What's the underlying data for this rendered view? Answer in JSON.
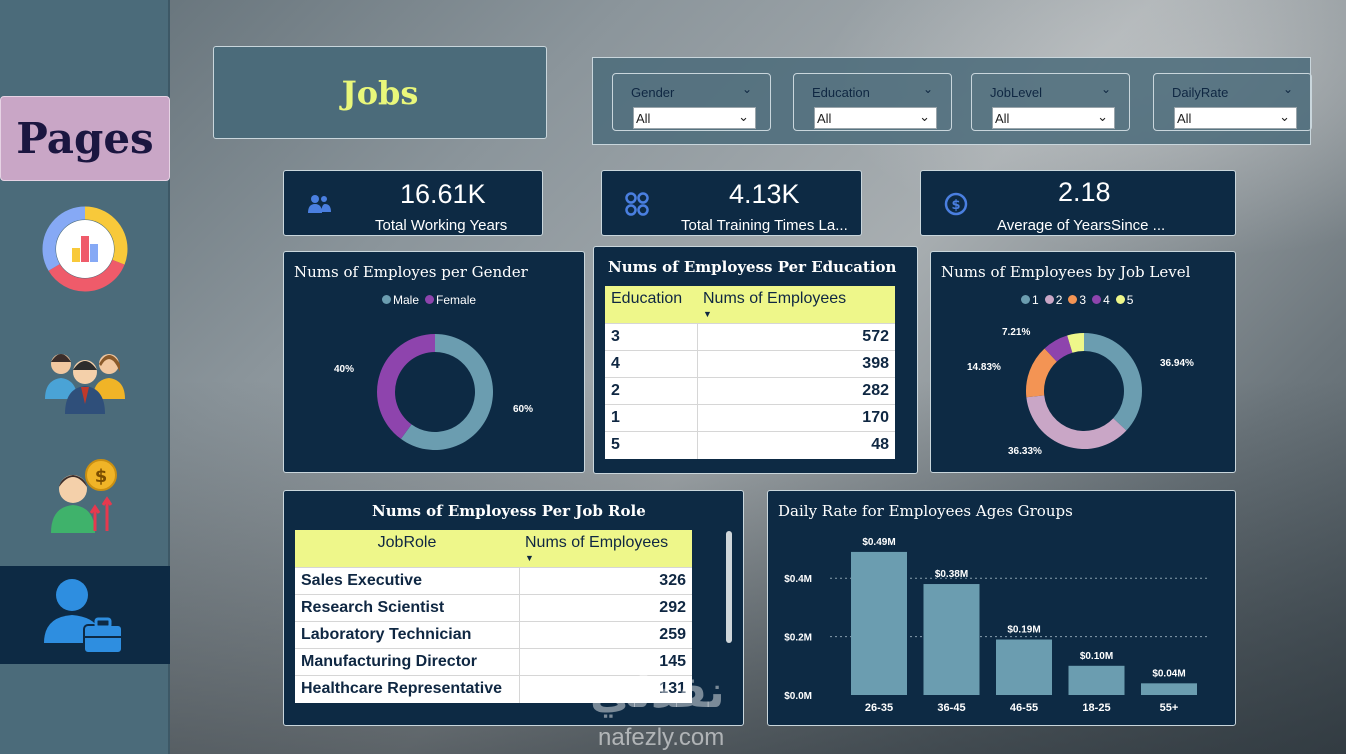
{
  "sidebar": {
    "pages_label": "Pages",
    "icons": [
      "analytics-donut-icon",
      "team-icon",
      "salary-growth-icon",
      "employee-job-icon"
    ]
  },
  "header": {
    "title": "Jobs"
  },
  "filters": [
    {
      "label": "Gender",
      "value": "All"
    },
    {
      "label": "Education",
      "value": "All"
    },
    {
      "label": "JobLevel",
      "value": "All"
    },
    {
      "label": "DailyRate",
      "value": "All"
    }
  ],
  "kpis": [
    {
      "value": "16.61K",
      "label": "Total Working Years",
      "icon": "people-icon"
    },
    {
      "value": "4.13K",
      "label": "Total Training Times La...",
      "icon": "circles-grid-icon"
    },
    {
      "value": "2.18",
      "label": "Average of YearsSince ...",
      "icon": "dollar-coin-icon"
    }
  ],
  "gender_chart": {
    "title": "Nums of Employes per Gender",
    "legend": [
      {
        "name": "Male",
        "color": "#6b9db0"
      },
      {
        "name": "Female",
        "color": "#8e44ad"
      }
    ],
    "labels": [
      "40%",
      "60%"
    ]
  },
  "education_table": {
    "title": "Nums of Employess Per Education",
    "headers": [
      "Education",
      "Nums of Employees"
    ],
    "rows": [
      [
        "3",
        "572"
      ],
      [
        "4",
        "398"
      ],
      [
        "2",
        "282"
      ],
      [
        "1",
        "170"
      ],
      [
        "5",
        "48"
      ]
    ]
  },
  "joblevel_chart": {
    "title": "Nums of Employees by Job Level",
    "legend": [
      {
        "name": "1",
        "color": "#6b9db0"
      },
      {
        "name": "2",
        "color": "#c9a6c6"
      },
      {
        "name": "3",
        "color": "#f39454"
      },
      {
        "name": "4",
        "color": "#8e44ad"
      },
      {
        "name": "5",
        "color": "#eef78a"
      }
    ],
    "labels": [
      "7.21%",
      "14.83%",
      "36.94%",
      "36.33%"
    ]
  },
  "jobrole_table": {
    "title": "Nums of Employess Per Job Role",
    "headers": [
      "JobRole",
      "Nums of Employees"
    ],
    "rows": [
      [
        "Sales Executive",
        "326"
      ],
      [
        "Research Scientist",
        "292"
      ],
      [
        "Laboratory Technician",
        "259"
      ],
      [
        "Manufacturing Director",
        "145"
      ],
      [
        "Healthcare Representative",
        "131"
      ]
    ]
  },
  "chart_data": [
    {
      "type": "pie",
      "title": "Nums of Employes per Gender",
      "categories": [
        "Male",
        "Female"
      ],
      "values": [
        60,
        40
      ],
      "legend": "top"
    },
    {
      "type": "pie",
      "title": "Nums of Employees by Job Level",
      "categories": [
        "1",
        "2",
        "3",
        "4",
        "5"
      ],
      "values": [
        36.94,
        36.33,
        14.83,
        7.21,
        4.69
      ],
      "legend": "top"
    },
    {
      "type": "bar",
      "title": "Daily Rate for Employees Ages Groups",
      "categories": [
        "26-35",
        "36-45",
        "46-55",
        "18-25",
        "55+"
      ],
      "values": [
        0.49,
        0.38,
        0.19,
        0.1,
        0.04
      ],
      "data_labels": [
        "$0.49M",
        "$0.38M",
        "$0.19M",
        "$0.10M",
        "$0.04M"
      ],
      "yticks": [
        "$0.0M",
        "$0.2M",
        "$0.4M"
      ],
      "ylim": [
        0,
        0.5
      ],
      "color": "#6b9db0",
      "grid": true
    }
  ],
  "watermark": {
    "arabic": "نفذلي",
    "site": "nafezly.com"
  }
}
